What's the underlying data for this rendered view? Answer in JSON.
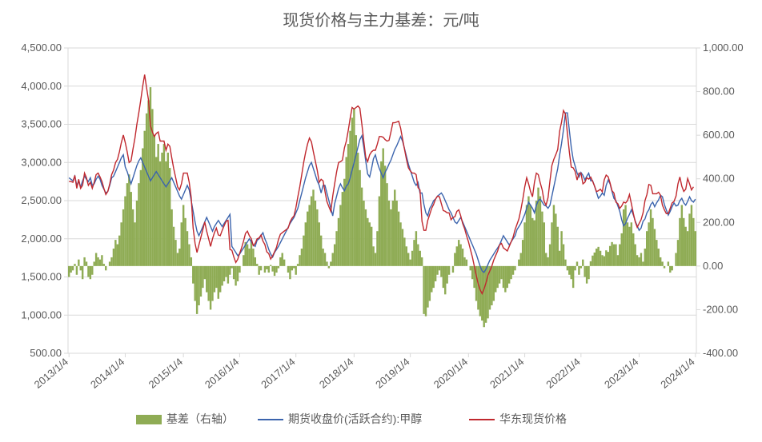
{
  "chart": {
    "type": "combo-bar-line-dual-axis",
    "title": "现货价格与主力基差：元/吨",
    "title_fontsize": 20,
    "title_color": "#595959",
    "background_color": "#ffffff",
    "plot_border_color": "#d9d9d9",
    "grid_color": "#d9d9d9",
    "tick_label_fontsize": 13,
    "tick_label_color": "#595959",
    "x_categories": [
      "2013/1/4",
      "2014/1/4",
      "2015/1/4",
      "2016/1/4",
      "2017/1/4",
      "2018/1/4",
      "2019/1/4",
      "2020/1/4",
      "2021/1/4",
      "2022/1/4",
      "2023/1/4",
      "2024/1/4"
    ],
    "x_tick_rotation": -40,
    "left_axis": {
      "min": 500,
      "max": 4500,
      "step": 500,
      "labels": [
        "500.00",
        "1,000.00",
        "1,500.00",
        "2,000.00",
        "2,500.00",
        "3,000.00",
        "3,500.00",
        "4,000.00",
        "4,500.00"
      ],
      "format_decimals": 2
    },
    "right_axis": {
      "min": -400,
      "max": 1000,
      "step": 200,
      "labels": [
        "-400.00",
        "-200.00",
        "0.00",
        "200.00",
        "400.00",
        "600.00",
        "800.00",
        "1,000.00"
      ],
      "format_decimals": 2
    },
    "legend": {
      "position": "bottom",
      "fontsize": 14,
      "items": [
        {
          "key": "basis",
          "label": "基差（右轴）",
          "type": "bar",
          "color": "#8fac55"
        },
        {
          "key": "futures",
          "label": "期货收盘价(活跃合约):甲醇",
          "type": "line",
          "color": "#3b64ad"
        },
        {
          "key": "spot",
          "label": "华东现货价格",
          "type": "line",
          "color": "#c0282e"
        }
      ]
    },
    "series": {
      "basis": {
        "axis": "right",
        "color": "#8fac55",
        "bar_width_ratio": 1.0,
        "values": [
          -50,
          -30,
          -20,
          10,
          -40,
          30,
          -20,
          -60,
          40,
          20,
          -50,
          -60,
          -40,
          20,
          60,
          40,
          30,
          50,
          10,
          -20,
          0,
          20,
          40,
          80,
          120,
          100,
          140,
          200,
          260,
          320,
          380,
          420,
          340,
          260,
          200,
          300,
          380,
          440,
          540,
          620,
          700,
          760,
          820,
          720,
          600,
          500,
          560,
          480,
          520,
          560,
          480,
          520,
          450,
          260,
          180,
          120,
          60,
          80,
          200,
          280,
          220,
          160,
          100,
          40,
          -80,
          -160,
          -220,
          -180,
          -140,
          -100,
          -60,
          -120,
          -160,
          -200,
          -160,
          -120,
          -100,
          -150,
          -120,
          -90,
          -70,
          -50,
          -80,
          -40,
          -10,
          -60,
          -90,
          -70,
          -30,
          0,
          50,
          110,
          100,
          80,
          120,
          80,
          40,
          10,
          -40,
          -20,
          0,
          -30,
          -15,
          -30,
          5,
          -25,
          -45,
          -30,
          -10,
          40,
          60,
          30,
          0,
          -30,
          -60,
          -20,
          -10,
          -40,
          10,
          50,
          80,
          140,
          200,
          250,
          280,
          320,
          350,
          300,
          260,
          200,
          140,
          80,
          60,
          20,
          -10,
          20,
          60,
          100,
          160,
          220,
          280,
          340,
          400,
          500,
          560,
          620,
          680,
          720,
          600,
          520,
          440,
          360,
          300,
          260,
          220,
          200,
          180,
          90,
          60,
          160,
          320,
          480,
          540,
          460,
          380,
          300,
          260,
          300,
          350,
          300,
          250,
          200,
          170,
          130,
          90,
          60,
          30,
          70,
          120,
          160,
          100,
          70,
          40,
          -220,
          -230,
          -190,
          -160,
          -120,
          -100,
          -70,
          -40,
          -20,
          -50,
          -100,
          -130,
          -80,
          -40,
          0,
          -30,
          60,
          90,
          120,
          100,
          80,
          40,
          30,
          0,
          -20,
          -60,
          -100,
          -160,
          -200,
          -230,
          -250,
          -280,
          -260,
          -240,
          -200,
          -180,
          -160,
          -120,
          -100,
          -80,
          -60,
          -100,
          -120,
          -100,
          -80,
          -60,
          -40,
          -20,
          0,
          30,
          60,
          120,
          200,
          280,
          320,
          280,
          220,
          210,
          300,
          360,
          320,
          250,
          200,
          60,
          40,
          100,
          200,
          280,
          240,
          180,
          70,
          160,
          100,
          30,
          -20,
          -40,
          -60,
          -100,
          -20,
          20,
          -40,
          -10,
          30,
          -50,
          -80,
          -60,
          22,
          48,
          62,
          80,
          88,
          70,
          50,
          45,
          72,
          65,
          92,
          110,
          100,
          100,
          50,
          100,
          150,
          260,
          280,
          200,
          180,
          200,
          150,
          100,
          50,
          40,
          60,
          20,
          80,
          160,
          200,
          260,
          220,
          170,
          120,
          80,
          40,
          20,
          -10,
          0,
          20,
          -30,
          -20,
          0,
          60,
          120,
          220,
          280,
          220,
          180,
          160,
          240,
          280,
          220,
          160
        ]
      },
      "futures": {
        "axis": "left",
        "color": "#3b64ad",
        "line_width": 1.4,
        "values": [
          2800,
          2780,
          2760,
          2820,
          2700,
          2750,
          2680,
          2760,
          2820,
          2780,
          2750,
          2800,
          2700,
          2720,
          2780,
          2820,
          2780,
          2700,
          2650,
          2600,
          2620,
          2700,
          2800,
          2820,
          2880,
          2940,
          3000,
          3060,
          3100,
          2940,
          2880,
          2800,
          2720,
          2800,
          2880,
          2960,
          3020,
          3060,
          3000,
          2940,
          2880,
          2820,
          2760,
          2800,
          2840,
          2880,
          2840,
          2800,
          2760,
          2720,
          2680,
          2720,
          2760,
          2800,
          2740,
          2680,
          2620,
          2560,
          2520,
          2580,
          2640,
          2700,
          2640,
          2500,
          2360,
          2220,
          2100,
          2040,
          2100,
          2160,
          2220,
          2280,
          2220,
          2160,
          2100,
          2160,
          2200,
          2240,
          2200,
          2160,
          2200,
          2240,
          2280,
          2320,
          1900,
          1860,
          1820,
          1780,
          1800,
          1840,
          1880,
          1920,
          1960,
          2000,
          1960,
          1920,
          1900,
          1980,
          2000,
          2040,
          2080,
          2000,
          1940,
          1860,
          1800,
          1760,
          1820,
          1860,
          1900,
          1950,
          2000,
          2050,
          2100,
          2150,
          2200,
          2240,
          2280,
          2340,
          2400,
          2500,
          2600,
          2700,
          2800,
          2880,
          2960,
          3000,
          2920,
          2840,
          2760,
          2700,
          2600,
          2700,
          2700,
          2600,
          2500,
          2400,
          2300,
          2460,
          2560,
          2660,
          2720,
          2670,
          2630,
          2690,
          2720,
          2800,
          2900,
          3000,
          3100,
          3200,
          3300,
          3350,
          3200,
          3020,
          2850,
          2810,
          2920,
          3050,
          3100,
          3000,
          2920,
          2860,
          2800,
          2870,
          2920,
          2980,
          3030,
          3100,
          3170,
          3220,
          3280,
          3340,
          3280,
          3180,
          3080,
          2980,
          2900,
          2820,
          2740,
          2700,
          2740,
          2600,
          2600,
          2450,
          2340,
          2300,
          2400,
          2440,
          2500,
          2520,
          2560,
          2580,
          2600,
          2560,
          2500,
          2440,
          2380,
          2340,
          2280,
          2220,
          2200,
          2240,
          2280,
          2220,
          2160,
          2100,
          2040,
          1980,
          1920,
          1860,
          1800,
          1720,
          1640,
          1580,
          1560,
          1600,
          1660,
          1720,
          1760,
          1800,
          1840,
          1880,
          1920,
          1980,
          2040,
          2000,
          1960,
          1920,
          1960,
          2000,
          2040,
          2120,
          2160,
          2200,
          2260,
          2320,
          2400,
          2480,
          2440,
          2400,
          2340,
          2440,
          2500,
          2520,
          2480,
          2440,
          2430,
          2400,
          2440,
          2560,
          2680,
          2800,
          2920,
          3100,
          3250,
          3430,
          3650,
          3650,
          3420,
          3200,
          3040,
          2950,
          2860,
          2810,
          2870,
          2830,
          2770,
          2820,
          2860,
          2760,
          2760,
          2690,
          2610,
          2530,
          2560,
          2600,
          2570,
          2700,
          2770,
          2720,
          2620,
          2530,
          2500,
          2430,
          2360,
          2250,
          2170,
          2200,
          2270,
          2320,
          2380,
          2310,
          2230,
          2170,
          2110,
          2140,
          2230,
          2260,
          2340,
          2380,
          2450,
          2480,
          2420,
          2470,
          2510,
          2570,
          2550,
          2450,
          2380,
          2310,
          2360,
          2420,
          2470,
          2430,
          2440,
          2500,
          2530,
          2470,
          2440,
          2490,
          2550,
          2500,
          2480,
          2520
        ]
      },
      "spot": {
        "axis": "left",
        "color": "#c0282e",
        "line_width": 1.4,
        "values": [
          2750,
          2750,
          2740,
          2830,
          2660,
          2780,
          2660,
          2700,
          2860,
          2800,
          2700,
          2740,
          2660,
          2740,
          2840,
          2860,
          2810,
          2750,
          2660,
          2580,
          2620,
          2720,
          2840,
          2900,
          3000,
          3040,
          3140,
          3260,
          3360,
          3260,
          3140,
          3000,
          3020,
          3180,
          3320,
          3500,
          3650,
          3820,
          4000,
          4150,
          3980,
          3820,
          3480,
          3400,
          3340,
          3380,
          3400,
          3280,
          3280,
          3280,
          3160,
          3240,
          3210,
          3060,
          2920,
          2800,
          2680,
          2640,
          2720,
          2860,
          2860,
          2860,
          2740,
          2540,
          2140,
          1940,
          1820,
          1920,
          2020,
          2120,
          2220,
          2100,
          2000,
          1900,
          2000,
          2080,
          2140,
          2050,
          2040,
          2110,
          2170,
          2230,
          2240,
          1860,
          1850,
          1760,
          1690,
          1730,
          1810,
          1880,
          1970,
          2070,
          2100,
          2040,
          2000,
          1910,
          1940,
          2000,
          2010,
          2050,
          1970,
          1925,
          1830,
          1805,
          1735,
          1775,
          1830,
          1890,
          1990,
          2060,
          2080,
          2100,
          2120,
          2140,
          2220,
          2270,
          2300,
          2410,
          2550,
          2680,
          2840,
          3000,
          3130,
          3240,
          3320,
          3270,
          3140,
          3020,
          2900,
          2740,
          2780,
          2760,
          2620,
          2490,
          2420,
          2360,
          2560,
          2720,
          2880,
          3000,
          3010,
          3030,
          3190,
          3280,
          3420,
          3580,
          3720,
          3700,
          3720,
          3740,
          3710,
          3500,
          3280,
          3070,
          3010,
          3100,
          3140,
          3160,
          3160,
          3240,
          3340,
          3340,
          3330,
          3300,
          3280,
          3290,
          3400,
          3520,
          3520,
          3530,
          3540,
          3450,
          3310,
          3170,
          3040,
          2930,
          2890,
          2860,
          2860,
          2840,
          2670,
          2640,
          2230,
          2110,
          2110,
          2240,
          2320,
          2400,
          2450,
          2520,
          2560,
          2550,
          2460,
          2370,
          2360,
          2340,
          2340,
          2250,
          2280,
          2290,
          2360,
          2380,
          2300,
          2200,
          2130,
          2040,
          1960,
          1860,
          1760,
          1640,
          1520,
          1410,
          1330,
          1280,
          1340,
          1420,
          1520,
          1580,
          1640,
          1720,
          1780,
          1840,
          1920,
          1940,
          1880,
          1860,
          1840,
          1900,
          1960,
          2020,
          2120,
          2190,
          2260,
          2380,
          2520,
          2680,
          2800,
          2720,
          2620,
          2550,
          2740,
          2860,
          2840,
          2730,
          2640,
          2490,
          2440,
          2540,
          2760,
          2960,
          3040,
          3100,
          3170,
          3410,
          3530,
          3680,
          3630,
          3380,
          3140,
          2940,
          2930,
          2880,
          2770,
          2860,
          2860,
          2720,
          2740,
          2800,
          2782,
          2808,
          2752,
          2690,
          2618,
          2630,
          2650,
          2615,
          2772,
          2835,
          2812,
          2730,
          2630,
          2600,
          2480,
          2460,
          2400,
          2430,
          2480,
          2470,
          2500,
          2580,
          2460,
          2330,
          2220,
          2150,
          2200,
          2250,
          2340,
          2500,
          2580,
          2710,
          2700,
          2590,
          2590,
          2590,
          2610,
          2570,
          2440,
          2380,
          2330,
          2330,
          2400,
          2470,
          2490,
          2560,
          2720,
          2810,
          2690,
          2620,
          2650,
          2790,
          2720,
          2640,
          2680
        ]
      }
    }
  }
}
